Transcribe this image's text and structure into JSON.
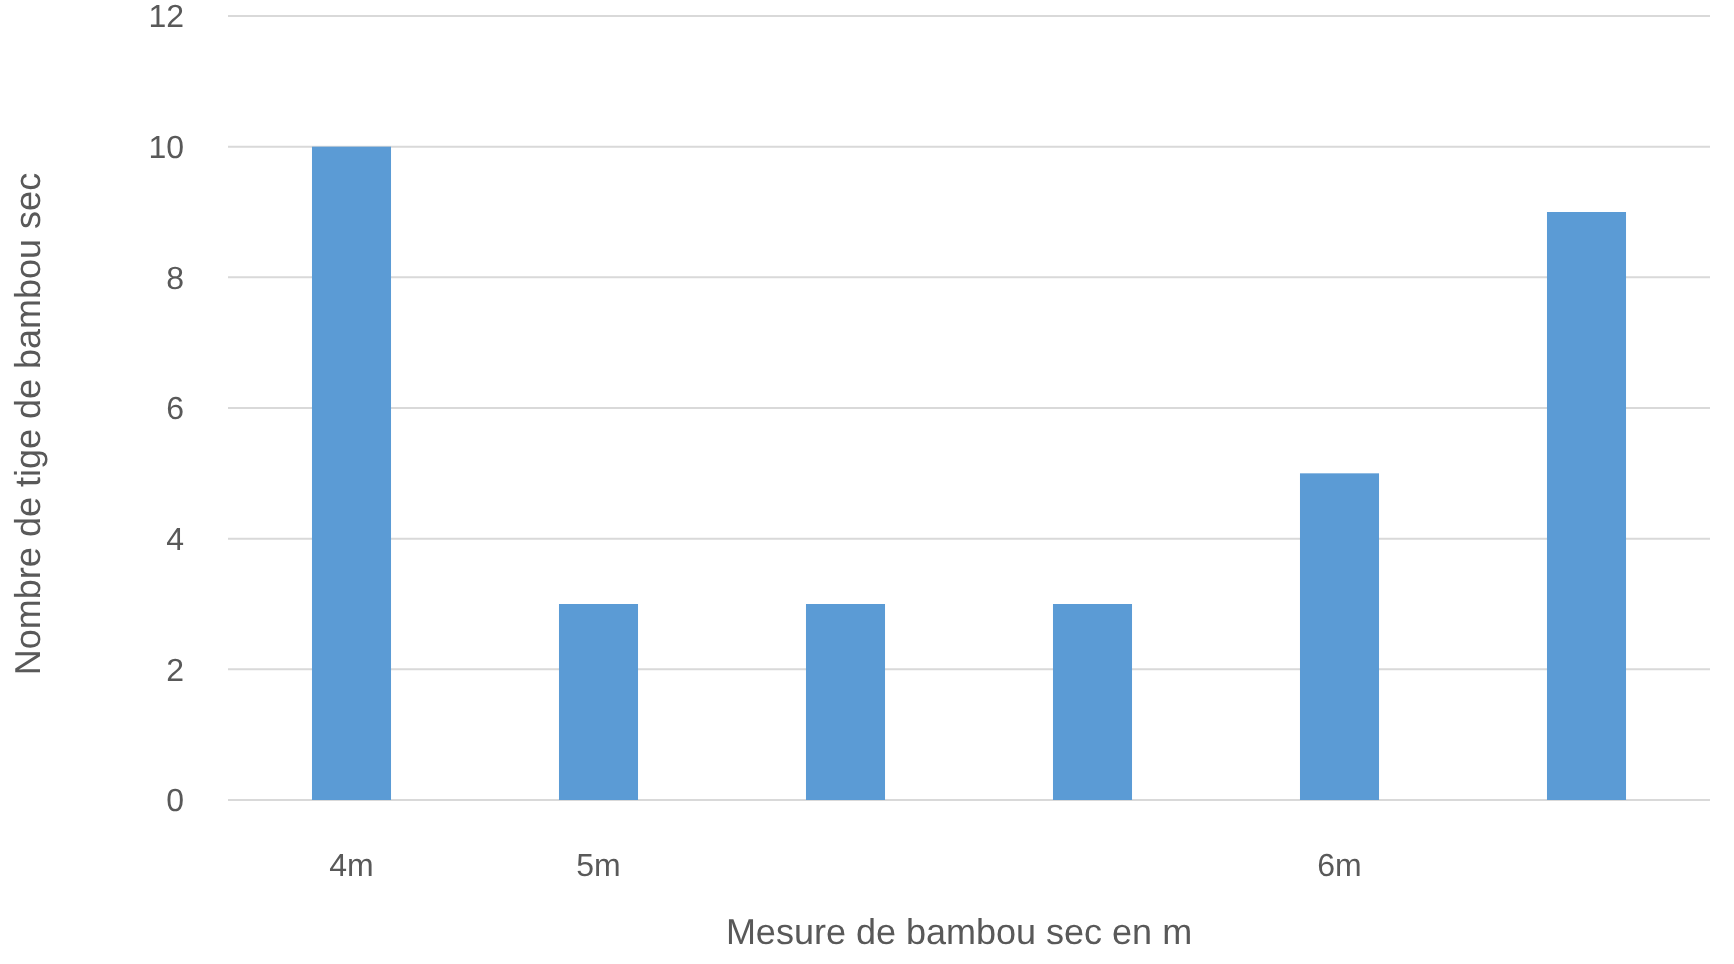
{
  "chart_data": {
    "type": "bar",
    "xlabel": "Mesure de bambou sec en m",
    "ylabel": "Nombre de tige de bambou sec",
    "categories": [
      "4m",
      "5m",
      null,
      null,
      "6m",
      null
    ],
    "values": [
      10,
      3,
      3,
      3,
      5,
      9
    ],
    "color": "#5b9bd5",
    "ylim": [
      0,
      12
    ],
    "yticks": [
      0,
      2,
      4,
      6,
      8,
      10,
      12
    ],
    "grid": "y"
  }
}
